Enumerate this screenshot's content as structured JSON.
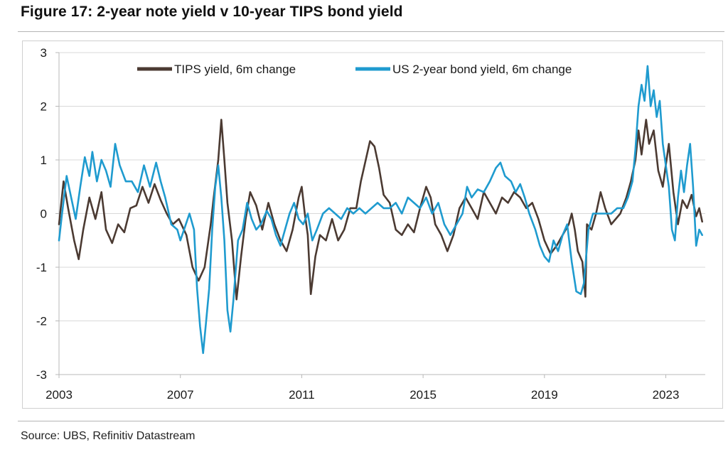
{
  "figure": {
    "title": "Figure 17: 2-year note yield v 10-year TIPS bond yield",
    "source": "Source: UBS, Refinitiv Datastream"
  },
  "chart_data": {
    "type": "line",
    "title": "Figure 17: 2-year note yield v 10-year TIPS bond yield",
    "xlabel": "",
    "ylabel": "",
    "xlim": [
      2003.0,
      2024.3
    ],
    "ylim": [
      -3,
      3
    ],
    "x_ticks": [
      2003,
      2007,
      2011,
      2015,
      2019,
      2023
    ],
    "y_ticks": [
      3,
      2,
      1,
      0,
      -1,
      -2,
      -3
    ],
    "grid": "horizontal",
    "legend_position": "top-center",
    "series": [
      {
        "name": "TIPS yield, 6m change",
        "color": "#4b3a32",
        "points": [
          [
            2003.0,
            -0.2
          ],
          [
            2003.15,
            0.6
          ],
          [
            2003.3,
            0.1
          ],
          [
            2003.5,
            -0.5
          ],
          [
            2003.65,
            -0.85
          ],
          [
            2003.8,
            -0.3
          ],
          [
            2004.0,
            0.3
          ],
          [
            2004.2,
            -0.1
          ],
          [
            2004.4,
            0.4
          ],
          [
            2004.55,
            -0.3
          ],
          [
            2004.75,
            -0.55
          ],
          [
            2004.95,
            -0.2
          ],
          [
            2005.15,
            -0.35
          ],
          [
            2005.35,
            0.1
          ],
          [
            2005.55,
            0.15
          ],
          [
            2005.75,
            0.5
          ],
          [
            2005.95,
            0.2
          ],
          [
            2006.15,
            0.55
          ],
          [
            2006.35,
            0.25
          ],
          [
            2006.55,
            0.0
          ],
          [
            2006.75,
            -0.2
          ],
          [
            2006.95,
            -0.1
          ],
          [
            2007.2,
            -0.4
          ],
          [
            2007.4,
            -1.0
          ],
          [
            2007.6,
            -1.25
          ],
          [
            2007.8,
            -1.0
          ],
          [
            2008.0,
            -0.2
          ],
          [
            2008.1,
            0.3
          ],
          [
            2008.25,
            1.0
          ],
          [
            2008.35,
            1.75
          ],
          [
            2008.45,
            1.0
          ],
          [
            2008.55,
            0.2
          ],
          [
            2008.7,
            -0.5
          ],
          [
            2008.85,
            -1.6
          ],
          [
            2009.0,
            -0.8
          ],
          [
            2009.15,
            -0.1
          ],
          [
            2009.3,
            0.4
          ],
          [
            2009.5,
            0.15
          ],
          [
            2009.7,
            -0.3
          ],
          [
            2009.9,
            0.2
          ],
          [
            2010.1,
            -0.2
          ],
          [
            2010.3,
            -0.5
          ],
          [
            2010.5,
            -0.7
          ],
          [
            2010.7,
            -0.3
          ],
          [
            2010.9,
            0.3
          ],
          [
            2011.0,
            0.5
          ],
          [
            2011.1,
            0.0
          ],
          [
            2011.2,
            -0.4
          ],
          [
            2011.3,
            -1.5
          ],
          [
            2011.45,
            -0.8
          ],
          [
            2011.6,
            -0.4
          ],
          [
            2011.8,
            -0.5
          ],
          [
            2012.0,
            -0.1
          ],
          [
            2012.2,
            -0.5
          ],
          [
            2012.4,
            -0.3
          ],
          [
            2012.6,
            0.1
          ],
          [
            2012.8,
            0.1
          ],
          [
            2012.95,
            0.6
          ],
          [
            2013.05,
            0.85
          ],
          [
            2013.25,
            1.35
          ],
          [
            2013.4,
            1.25
          ],
          [
            2013.55,
            0.85
          ],
          [
            2013.7,
            0.35
          ],
          [
            2013.9,
            0.2
          ],
          [
            2014.1,
            -0.3
          ],
          [
            2014.3,
            -0.4
          ],
          [
            2014.5,
            -0.2
          ],
          [
            2014.7,
            -0.35
          ],
          [
            2014.9,
            0.1
          ],
          [
            2015.1,
            0.5
          ],
          [
            2015.25,
            0.3
          ],
          [
            2015.4,
            -0.2
          ],
          [
            2015.6,
            -0.4
          ],
          [
            2015.8,
            -0.7
          ],
          [
            2016.0,
            -0.4
          ],
          [
            2016.2,
            0.1
          ],
          [
            2016.4,
            0.3
          ],
          [
            2016.6,
            0.1
          ],
          [
            2016.8,
            -0.1
          ],
          [
            2017.0,
            0.4
          ],
          [
            2017.2,
            0.2
          ],
          [
            2017.4,
            0.0
          ],
          [
            2017.6,
            0.3
          ],
          [
            2017.8,
            0.2
          ],
          [
            2018.0,
            0.4
          ],
          [
            2018.2,
            0.3
          ],
          [
            2018.4,
            0.1
          ],
          [
            2018.6,
            0.2
          ],
          [
            2018.8,
            -0.1
          ],
          [
            2019.0,
            -0.5
          ],
          [
            2019.2,
            -0.75
          ],
          [
            2019.4,
            -0.6
          ],
          [
            2019.6,
            -0.4
          ],
          [
            2019.8,
            -0.2
          ],
          [
            2019.9,
            0.0
          ],
          [
            2020.0,
            -0.3
          ],
          [
            2020.1,
            -0.7
          ],
          [
            2020.25,
            -0.9
          ],
          [
            2020.35,
            -1.55
          ],
          [
            2020.4,
            -0.2
          ],
          [
            2020.55,
            -0.3
          ],
          [
            2020.7,
            0.0
          ],
          [
            2020.85,
            0.4
          ],
          [
            2021.0,
            0.1
          ],
          [
            2021.2,
            -0.2
          ],
          [
            2021.35,
            -0.1
          ],
          [
            2021.5,
            0.0
          ],
          [
            2021.7,
            0.3
          ],
          [
            2021.85,
            0.6
          ],
          [
            2022.0,
            1.0
          ],
          [
            2022.1,
            1.55
          ],
          [
            2022.2,
            1.1
          ],
          [
            2022.35,
            1.75
          ],
          [
            2022.45,
            1.3
          ],
          [
            2022.6,
            1.55
          ],
          [
            2022.75,
            0.8
          ],
          [
            2022.9,
            0.5
          ],
          [
            2023.0,
            0.9
          ],
          [
            2023.1,
            1.3
          ],
          [
            2023.25,
            0.4
          ],
          [
            2023.4,
            -0.2
          ],
          [
            2023.55,
            0.25
          ],
          [
            2023.7,
            0.1
          ],
          [
            2023.85,
            0.35
          ],
          [
            2024.0,
            -0.05
          ],
          [
            2024.1,
            0.1
          ],
          [
            2024.2,
            -0.15
          ]
        ]
      },
      {
        "name": "US 2-year bond yield, 6m change",
        "color": "#1f9bcf",
        "points": [
          [
            2003.0,
            -0.5
          ],
          [
            2003.1,
            0.0
          ],
          [
            2003.25,
            0.7
          ],
          [
            2003.4,
            0.3
          ],
          [
            2003.55,
            -0.1
          ],
          [
            2003.7,
            0.5
          ],
          [
            2003.85,
            1.05
          ],
          [
            2004.0,
            0.7
          ],
          [
            2004.1,
            1.15
          ],
          [
            2004.25,
            0.6
          ],
          [
            2004.4,
            1.0
          ],
          [
            2004.55,
            0.8
          ],
          [
            2004.7,
            0.5
          ],
          [
            2004.85,
            1.3
          ],
          [
            2005.0,
            0.9
          ],
          [
            2005.2,
            0.6
          ],
          [
            2005.4,
            0.6
          ],
          [
            2005.6,
            0.4
          ],
          [
            2005.8,
            0.9
          ],
          [
            2006.0,
            0.5
          ],
          [
            2006.2,
            0.95
          ],
          [
            2006.35,
            0.6
          ],
          [
            2006.5,
            0.3
          ],
          [
            2006.7,
            -0.2
          ],
          [
            2006.9,
            -0.3
          ],
          [
            2007.0,
            -0.5
          ],
          [
            2007.15,
            -0.25
          ],
          [
            2007.3,
            0.0
          ],
          [
            2007.45,
            -0.3
          ],
          [
            2007.55,
            -1.4
          ],
          [
            2007.65,
            -2.1
          ],
          [
            2007.75,
            -2.6
          ],
          [
            2007.85,
            -2.0
          ],
          [
            2007.95,
            -1.4
          ],
          [
            2008.05,
            -0.3
          ],
          [
            2008.15,
            0.5
          ],
          [
            2008.25,
            0.9
          ],
          [
            2008.35,
            0.3
          ],
          [
            2008.45,
            -0.5
          ],
          [
            2008.55,
            -1.8
          ],
          [
            2008.65,
            -2.2
          ],
          [
            2008.75,
            -1.6
          ],
          [
            2008.9,
            -0.5
          ],
          [
            2009.05,
            -0.3
          ],
          [
            2009.2,
            0.2
          ],
          [
            2009.35,
            -0.1
          ],
          [
            2009.5,
            -0.3
          ],
          [
            2009.65,
            -0.2
          ],
          [
            2009.85,
            0.05
          ],
          [
            2010.0,
            -0.1
          ],
          [
            2010.15,
            -0.4
          ],
          [
            2010.3,
            -0.6
          ],
          [
            2010.45,
            -0.3
          ],
          [
            2010.6,
            0.0
          ],
          [
            2010.75,
            0.2
          ],
          [
            2010.9,
            -0.1
          ],
          [
            2011.05,
            -0.2
          ],
          [
            2011.2,
            0.0
          ],
          [
            2011.35,
            -0.5
          ],
          [
            2011.5,
            -0.3
          ],
          [
            2011.7,
            0.0
          ],
          [
            2011.9,
            0.1
          ],
          [
            2012.1,
            0.0
          ],
          [
            2012.3,
            -0.1
          ],
          [
            2012.5,
            0.1
          ],
          [
            2012.7,
            0.0
          ],
          [
            2012.9,
            0.1
          ],
          [
            2013.1,
            0.0
          ],
          [
            2013.3,
            0.1
          ],
          [
            2013.5,
            0.2
          ],
          [
            2013.7,
            0.1
          ],
          [
            2013.9,
            0.1
          ],
          [
            2014.1,
            0.2
          ],
          [
            2014.3,
            0.0
          ],
          [
            2014.5,
            0.3
          ],
          [
            2014.7,
            0.2
          ],
          [
            2014.9,
            0.1
          ],
          [
            2015.1,
            0.3
          ],
          [
            2015.3,
            0.0
          ],
          [
            2015.5,
            0.2
          ],
          [
            2015.7,
            -0.2
          ],
          [
            2015.9,
            -0.4
          ],
          [
            2016.1,
            -0.2
          ],
          [
            2016.3,
            0.0
          ],
          [
            2016.45,
            0.5
          ],
          [
            2016.6,
            0.3
          ],
          [
            2016.8,
            0.45
          ],
          [
            2017.0,
            0.4
          ],
          [
            2017.2,
            0.6
          ],
          [
            2017.4,
            0.85
          ],
          [
            2017.55,
            0.95
          ],
          [
            2017.7,
            0.7
          ],
          [
            2017.9,
            0.6
          ],
          [
            2018.05,
            0.4
          ],
          [
            2018.2,
            0.55
          ],
          [
            2018.35,
            0.3
          ],
          [
            2018.5,
            0.0
          ],
          [
            2018.7,
            -0.3
          ],
          [
            2018.85,
            -0.6
          ],
          [
            2019.0,
            -0.8
          ],
          [
            2019.15,
            -0.9
          ],
          [
            2019.3,
            -0.5
          ],
          [
            2019.45,
            -0.7
          ],
          [
            2019.6,
            -0.4
          ],
          [
            2019.75,
            -0.2
          ],
          [
            2019.9,
            -0.9
          ],
          [
            2020.05,
            -1.45
          ],
          [
            2020.2,
            -1.5
          ],
          [
            2020.3,
            -1.3
          ],
          [
            2020.45,
            -0.3
          ],
          [
            2020.6,
            0.0
          ],
          [
            2020.8,
            0.0
          ],
          [
            2021.0,
            0.0
          ],
          [
            2021.2,
            0.0
          ],
          [
            2021.4,
            0.1
          ],
          [
            2021.6,
            0.1
          ],
          [
            2021.75,
            0.3
          ],
          [
            2021.9,
            0.6
          ],
          [
            2022.0,
            1.2
          ],
          [
            2022.1,
            2.0
          ],
          [
            2022.2,
            2.4
          ],
          [
            2022.3,
            2.1
          ],
          [
            2022.4,
            2.75
          ],
          [
            2022.5,
            2.0
          ],
          [
            2022.6,
            2.3
          ],
          [
            2022.7,
            1.8
          ],
          [
            2022.8,
            2.1
          ],
          [
            2022.9,
            1.3
          ],
          [
            2023.0,
            0.9
          ],
          [
            2023.1,
            0.5
          ],
          [
            2023.2,
            -0.3
          ],
          [
            2023.3,
            -0.5
          ],
          [
            2023.4,
            0.3
          ],
          [
            2023.5,
            0.8
          ],
          [
            2023.6,
            0.4
          ],
          [
            2023.7,
            0.9
          ],
          [
            2023.8,
            1.3
          ],
          [
            2023.9,
            0.5
          ],
          [
            2024.0,
            -0.6
          ],
          [
            2024.1,
            -0.3
          ],
          [
            2024.2,
            -0.4
          ]
        ]
      }
    ]
  }
}
